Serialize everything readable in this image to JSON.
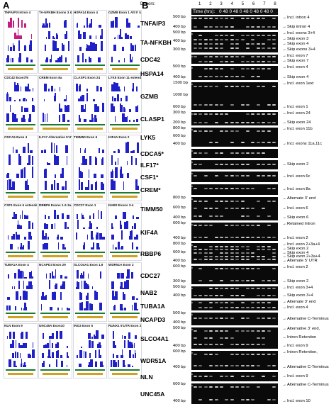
{
  "figure": {
    "panel_a_letter": "A",
    "panel_b_letter": "B"
  },
  "panel_a": {
    "tracks": [
      {
        "label": "TNFAIP3 Intron 4"
      },
      {
        "label": "TA-NFKBH Exons 3 & 4"
      },
      {
        "label": "HSPA14 Exon 4"
      },
      {
        "label": "GZMB Exon 1 Alt 5' UTR"
      },
      {
        "label": "CDC42 Exon7/6"
      },
      {
        "label": "CREM Exon 8a"
      },
      {
        "label": "CLASP1 Exon 24"
      },
      {
        "label": "LYK5 Exon 11 extended"
      },
      {
        "label": "CDCA5 Exon 4"
      },
      {
        "label": "ILF17 Alternative 5'UTR"
      },
      {
        "label": "TIMM50 Exon 6"
      },
      {
        "label": "KIF4A Exon 2"
      },
      {
        "label": "CSF1 Exon 6 extended"
      },
      {
        "label": "RBBP6 Exons 1-2-3a-4"
      },
      {
        "label": "CDC27 Exon 1"
      },
      {
        "label": "NAB2 Exons 3-4"
      },
      {
        "label": "TUBA1A Exon 4"
      },
      {
        "label": "NCAPD3 Exon 29"
      },
      {
        "label": "SLCO4A1 Exon 1,9"
      },
      {
        "label": "WDR51A Exon 2"
      },
      {
        "label": "NLN Exon 9"
      },
      {
        "label": "UNC45A Exon10"
      },
      {
        "label": "ING3 Exon 5"
      },
      {
        "label": "RUNX1 5'UTR Exon 2"
      }
    ]
  },
  "panel_b": {
    "donors_label": "Donors:",
    "donor_numbers": [
      "1",
      "2",
      "3",
      "4",
      "5",
      "6",
      "7",
      "8"
    ],
    "time_label": "Time (hrs):",
    "time_values": "0 48 0 48 0 48 0 48 0 48 0 48 0 48 0 48",
    "rows": [
      {
        "gene": "TNFAIP3",
        "bp": [
          "500 bp",
          "400 bp"
        ],
        "annotations": [
          "Incl. intron 4",
          "Skip intron 4"
        ]
      },
      {
        "gene": "TA-NFKBH",
        "bp": [
          "500 bp",
          "400 bp",
          "300 bp"
        ],
        "annotations": [
          "Incl. exons 3+4",
          "Skip exon 3",
          "Skip exon 4",
          "Skip exons 3+4"
        ]
      },
      {
        "gene": "CDC42",
        "bp": [],
        "annotations": [
          "Incl. exon 7",
          "Skip exon 7"
        ]
      },
      {
        "gene": "HSPA14",
        "bp": [
          "500 bp",
          "400 bp"
        ],
        "annotations": [
          "Incl. exon 4",
          "Skip exon 4"
        ]
      },
      {
        "gene": "GZMB",
        "bp": [
          "1500 bp",
          "1000 bp",
          "600 bp"
        ],
        "annotations": [
          "Incl. exon 1ext",
          "Incl. exon 1"
        ]
      },
      {
        "gene": "CLASP1",
        "bp": [
          "300 bp",
          "200 bp"
        ],
        "annotations": [
          "Incl. exon 24",
          "Skip exon 24"
        ]
      },
      {
        "gene": "LYK5",
        "bp": [
          "800 bp",
          "600 bp",
          "400 bp"
        ],
        "annotations": [
          "Incl. exon 11b",
          "Incl. exons 11a,11c"
        ]
      },
      {
        "gene": "CDCA5*",
        "bp": [],
        "annotations": []
      },
      {
        "gene": "ILF17*",
        "bp": [],
        "annotations": [
          "Skip exon 2"
        ]
      },
      {
        "gene": "CSF1*",
        "bp": [],
        "annotations": [
          "Incl. exon 6c"
        ]
      },
      {
        "gene": "CREM*",
        "bp": [],
        "annotations": [
          "Incl. exon 8a"
        ]
      },
      {
        "gene": "TIMM50",
        "bp": [
          "800 bp",
          "600 bp",
          "400 bp"
        ],
        "annotations": [
          "Alternate 3' end",
          "Incl. exon 6",
          "Skip exon 6"
        ]
      },
      {
        "gene": "KIF4A",
        "bp": [
          "600 bp",
          "400 bp"
        ],
        "annotations": [
          "Retained Intron",
          "Incl. exon 2"
        ]
      },
      {
        "gene": "RBBP6",
        "bp": [
          "800 bp",
          "600 bp",
          "400 bp"
        ],
        "annotations": [
          "Incl. exon 2+3a+4",
          "Skip exon 2",
          "Skip exon 4",
          "Skip exon 2+3a+4",
          "Alternate 5' UTR"
        ]
      },
      {
        "gene": "CDC27",
        "bp": [
          "600 bp",
          "300 bp"
        ],
        "annotations": [
          "Incl. exon 2",
          "Skip exon 2"
        ]
      },
      {
        "gene": "NAB2",
        "bp": [
          "500 bp",
          "400 bp"
        ],
        "annotations": [
          "Incl. exon 3+4",
          "Skip exon 3+4"
        ]
      },
      {
        "gene": "TUBA1A",
        "bp": [],
        "annotations": [
          "Alternate 3' end",
          "Incl. exon 4"
        ]
      },
      {
        "gene": "NCAPD3",
        "bp": [
          "500 bp",
          "400 bp"
        ],
        "annotations": [
          "Alternative C-Terminus"
        ]
      },
      {
        "gene": "SLCO4A1",
        "bp": [
          "500 bp",
          "400 bp"
        ],
        "annotations": [
          "Alternative 3' end,",
          "Intron Retention",
          "Incl. exon 9"
        ]
      },
      {
        "gene": "WDR51A",
        "bp": [
          "600 bp",
          "400 bp"
        ],
        "annotations": [
          "Intron Retention,",
          "Alternative C-Terminus"
        ]
      },
      {
        "gene": "NLN",
        "bp": [],
        "annotations": [
          "Incl. exon 9"
        ]
      },
      {
        "gene": "UNC45A",
        "bp": [
          "600 bp",
          "400 bp"
        ],
        "annotations": [
          "Alternative C-Terminus",
          "Incl. exon 10"
        ]
      }
    ]
  }
}
